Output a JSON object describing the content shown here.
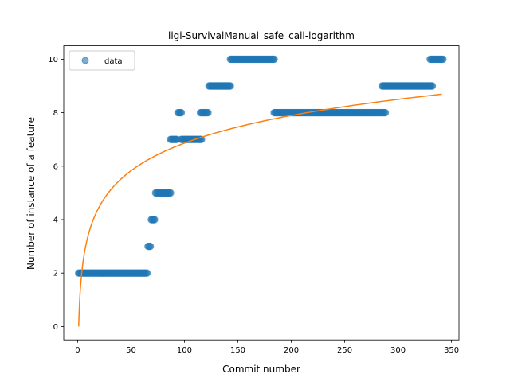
{
  "chart_data": {
    "type": "scatter",
    "title": "ligi-SurvivalManual_safe_call-logarithm",
    "xlabel": "Commit number",
    "ylabel": "Number of instance of a feature",
    "xlim": [
      -13,
      357
    ],
    "ylim": [
      -0.5,
      10.5
    ],
    "xticks": [
      0,
      50,
      100,
      150,
      200,
      250,
      300,
      350
    ],
    "yticks": [
      0,
      2,
      4,
      6,
      8,
      10
    ],
    "grid": false,
    "legend": {
      "placement": "top-left",
      "entries": [
        "data"
      ]
    },
    "colors": {
      "data": "#1f77b4",
      "fit": "#ff7f0e"
    },
    "series": [
      {
        "name": "data",
        "kind": "scatter",
        "segments": [
          {
            "x_start": 1,
            "x_end": 65,
            "y": 2
          },
          {
            "x_start": 66,
            "x_end": 68,
            "y": 3
          },
          {
            "x_start": 69,
            "x_end": 72,
            "y": 4
          },
          {
            "x_start": 73,
            "x_end": 87,
            "y": 5
          },
          {
            "x_start": 87,
            "x_end": 93,
            "y": 7
          },
          {
            "x_start": 94,
            "x_end": 97,
            "y": 8
          },
          {
            "x_start": 97,
            "x_end": 116,
            "y": 7
          },
          {
            "x_start": 115,
            "x_end": 122,
            "y": 8
          },
          {
            "x_start": 123,
            "x_end": 143,
            "y": 9
          },
          {
            "x_start": 143,
            "x_end": 184,
            "y": 10
          },
          {
            "x_start": 184,
            "x_end": 288,
            "y": 8
          },
          {
            "x_start": 285,
            "x_end": 332,
            "y": 9
          },
          {
            "x_start": 330,
            "x_end": 342,
            "y": 10
          }
        ]
      },
      {
        "kind": "line",
        "function": "a + b*ln(x)",
        "a": 0.0,
        "b": 1.49,
        "x_range": [
          1,
          341
        ]
      }
    ]
  }
}
